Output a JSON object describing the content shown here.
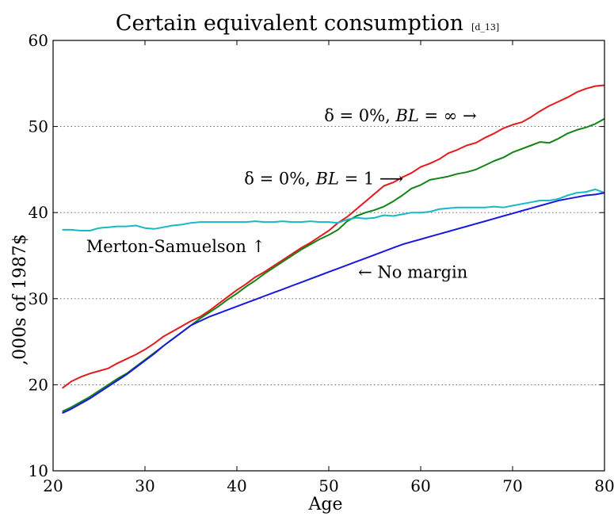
{
  "chart_data": {
    "type": "line",
    "title": "Certain equivalent consumption",
    "title_tag": "[d_13]",
    "xlabel": "Age",
    "ylabel": ",000s of 1987$",
    "xlim": [
      20,
      80
    ],
    "ylim": [
      10,
      60
    ],
    "xticks": [
      20,
      30,
      40,
      50,
      60,
      70,
      80
    ],
    "yticks": [
      10,
      20,
      30,
      40,
      50,
      60
    ],
    "grid": "horizontal-dotted",
    "series": [
      {
        "key": "inf",
        "color": "#e41a1c",
        "x": [
          21,
          22,
          23,
          24,
          25,
          26,
          27,
          28,
          29,
          30,
          31,
          32,
          33,
          34,
          35,
          36,
          37,
          38,
          39,
          40,
          41,
          42,
          43,
          44,
          45,
          46,
          47,
          48,
          49,
          50,
          51,
          52,
          53,
          54,
          55,
          56,
          57,
          58,
          59,
          60,
          61,
          62,
          63,
          64,
          65,
          66,
          67,
          68,
          69,
          70,
          71,
          72,
          73,
          74,
          75,
          76,
          77,
          78,
          79,
          80
        ],
        "y": [
          19.6,
          20.4,
          20.9,
          21.3,
          21.6,
          21.9,
          22.5,
          23.0,
          23.5,
          24.1,
          24.8,
          25.6,
          26.2,
          26.8,
          27.4,
          27.9,
          28.6,
          29.4,
          30.2,
          31.0,
          31.7,
          32.5,
          33.1,
          33.8,
          34.5,
          35.2,
          35.9,
          36.5,
          37.2,
          37.9,
          38.8,
          39.5,
          40.4,
          41.3,
          42.2,
          43.1,
          43.5,
          44.1,
          44.6,
          45.3,
          45.7,
          46.2,
          46.9,
          47.3,
          47.8,
          48.1,
          48.7,
          49.2,
          49.8,
          50.2,
          50.5,
          51.1,
          51.8,
          52.4,
          52.9,
          53.4,
          54.0,
          54.4,
          54.7,
          54.8
        ]
      },
      {
        "key": "bl1",
        "color": "#138413",
        "x": [
          21,
          22,
          23,
          24,
          25,
          26,
          27,
          28,
          29,
          30,
          31,
          32,
          33,
          34,
          35,
          36,
          37,
          38,
          39,
          40,
          41,
          42,
          43,
          44,
          45,
          46,
          47,
          48,
          49,
          50,
          51,
          52,
          53,
          54,
          55,
          56,
          57,
          58,
          59,
          60,
          61,
          62,
          63,
          64,
          65,
          66,
          67,
          68,
          69,
          70,
          71,
          72,
          73,
          74,
          75,
          76,
          77,
          78,
          79,
          80
        ],
        "y": [
          16.9,
          17.4,
          18.0,
          18.6,
          19.3,
          20.0,
          20.7,
          21.3,
          22.1,
          22.9,
          23.7,
          24.5,
          25.3,
          26.1,
          26.9,
          27.7,
          28.4,
          29.1,
          29.9,
          30.6,
          31.4,
          32.1,
          32.9,
          33.6,
          34.3,
          35.0,
          35.7,
          36.3,
          36.9,
          37.4,
          38.0,
          39.0,
          39.6,
          40.0,
          40.3,
          40.7,
          41.3,
          42.0,
          42.8,
          43.2,
          43.8,
          44.0,
          44.2,
          44.5,
          44.7,
          45.0,
          45.5,
          46.0,
          46.4,
          47.0,
          47.4,
          47.8,
          48.2,
          48.1,
          48.6,
          49.2,
          49.6,
          49.9,
          50.3,
          50.9
        ]
      },
      {
        "key": "ms",
        "color": "#17b9c4",
        "x": [
          21,
          22,
          23,
          24,
          25,
          26,
          27,
          28,
          29,
          30,
          31,
          32,
          33,
          34,
          35,
          36,
          37,
          38,
          39,
          40,
          41,
          42,
          43,
          44,
          45,
          46,
          47,
          48,
          49,
          50,
          51,
          52,
          53,
          54,
          55,
          56,
          57,
          58,
          59,
          60,
          61,
          62,
          63,
          64,
          65,
          66,
          67,
          68,
          69,
          70,
          71,
          72,
          73,
          74,
          75,
          76,
          77,
          78,
          79,
          80
        ],
        "y": [
          38.0,
          38.0,
          37.9,
          37.9,
          38.2,
          38.3,
          38.4,
          38.4,
          38.5,
          38.2,
          38.1,
          38.3,
          38.5,
          38.6,
          38.8,
          38.9,
          38.9,
          38.9,
          38.9,
          38.9,
          38.9,
          39.0,
          38.9,
          38.9,
          39.0,
          38.9,
          38.9,
          39.0,
          38.9,
          38.9,
          38.8,
          39.2,
          39.4,
          39.3,
          39.4,
          39.7,
          39.6,
          39.8,
          40.0,
          40.0,
          40.1,
          40.4,
          40.5,
          40.6,
          40.6,
          40.6,
          40.6,
          40.7,
          40.6,
          40.8,
          41.0,
          41.2,
          41.4,
          41.4,
          41.6,
          42.0,
          42.3,
          42.4,
          42.7,
          42.3
        ]
      },
      {
        "key": "nomargin",
        "color": "#1818e0",
        "x": [
          21,
          22,
          23,
          24,
          25,
          26,
          27,
          28,
          29,
          30,
          31,
          32,
          33,
          34,
          35,
          36,
          37,
          38,
          39,
          40,
          41,
          42,
          43,
          44,
          45,
          46,
          47,
          48,
          49,
          50,
          51,
          52,
          53,
          54,
          55,
          56,
          57,
          58,
          59,
          60,
          61,
          62,
          63,
          64,
          65,
          66,
          67,
          68,
          69,
          70,
          71,
          72,
          73,
          74,
          75,
          76,
          77,
          78,
          79,
          80
        ],
        "y": [
          16.7,
          17.2,
          17.8,
          18.4,
          19.1,
          19.8,
          20.5,
          21.2,
          22.0,
          22.8,
          23.6,
          24.5,
          25.3,
          26.1,
          26.9,
          27.4,
          27.9,
          28.3,
          28.7,
          29.1,
          29.5,
          29.9,
          30.3,
          30.7,
          31.1,
          31.5,
          31.9,
          32.3,
          32.7,
          33.1,
          33.5,
          33.9,
          34.3,
          34.7,
          35.1,
          35.5,
          35.9,
          36.3,
          36.6,
          36.9,
          37.2,
          37.5,
          37.8,
          38.1,
          38.4,
          38.7,
          39.0,
          39.3,
          39.6,
          39.9,
          40.2,
          40.5,
          40.8,
          41.1,
          41.4,
          41.6,
          41.8,
          42.0,
          42.1,
          42.3
        ]
      }
    ],
    "annotations": [
      {
        "key": "inf",
        "x": 49.5,
        "y": 50.6,
        "head": "δ = 0%, ",
        "var": "BL",
        "tail": " = ∞ →"
      },
      {
        "key": "bl1",
        "x": 40.8,
        "y": 43.3,
        "head": "δ = 0%, ",
        "var": "BL",
        "tail": " = 1 ⟶"
      },
      {
        "key": "ms",
        "x": 23.6,
        "y": 35.4,
        "text": "Merton-Samuelson ↑"
      },
      {
        "key": "nomargin",
        "x": 53.2,
        "y": 32.4,
        "text": "← No margin"
      }
    ]
  }
}
